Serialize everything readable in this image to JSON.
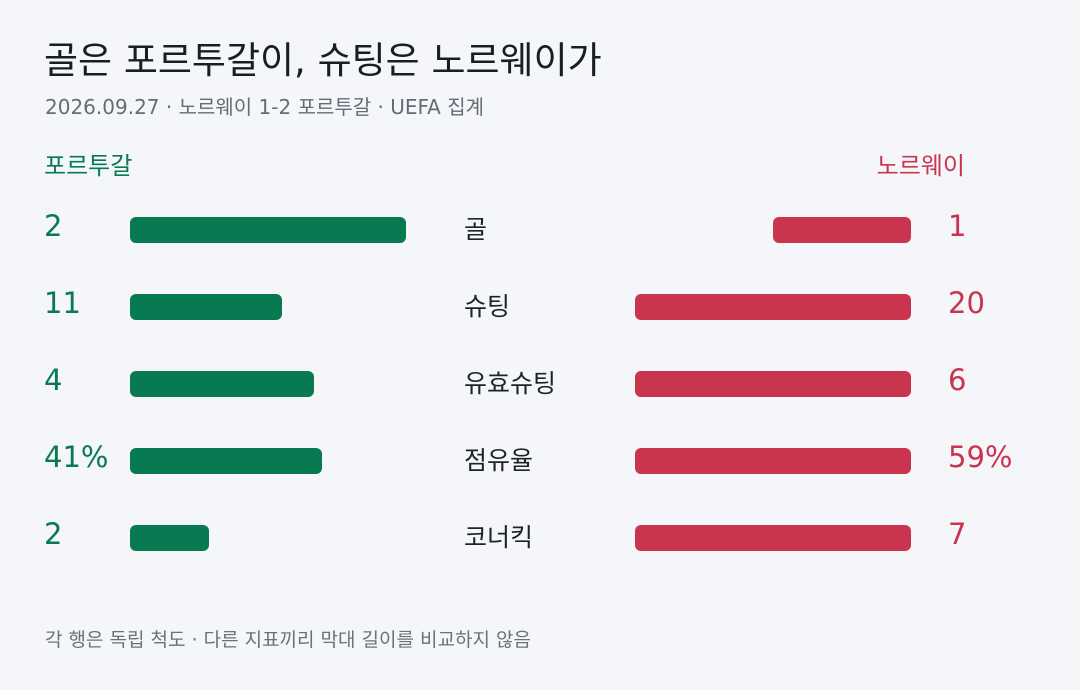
{
  "chart_data": {
    "type": "bar",
    "title": "골은 포르투갈이, 슈팅은 노르웨이가",
    "subtitle": "2026.09.27 · 노르웨이 1-2 포르투갈 · UEFA 집계",
    "teams": {
      "left": "포르투갈",
      "right": "노르웨이"
    },
    "colors": {
      "left": "#087a52",
      "right": "#c9344e"
    },
    "categories": [
      "골",
      "슈팅",
      "유효슈팅",
      "점유율",
      "코너킥"
    ],
    "series": [
      {
        "name": "포르투갈",
        "values": [
          2,
          11,
          4,
          41,
          2
        ],
        "labels": [
          "2",
          "11",
          "4",
          "41%",
          "2"
        ]
      },
      {
        "name": "노르웨이",
        "values": [
          1,
          20,
          6,
          59,
          7
        ],
        "labels": [
          "1",
          "20",
          "6",
          "59%",
          "7"
        ]
      }
    ],
    "footnote": "각 행은 독립 척도 · 다른 지표끼리 막대 길이를 비교하지 않음"
  }
}
